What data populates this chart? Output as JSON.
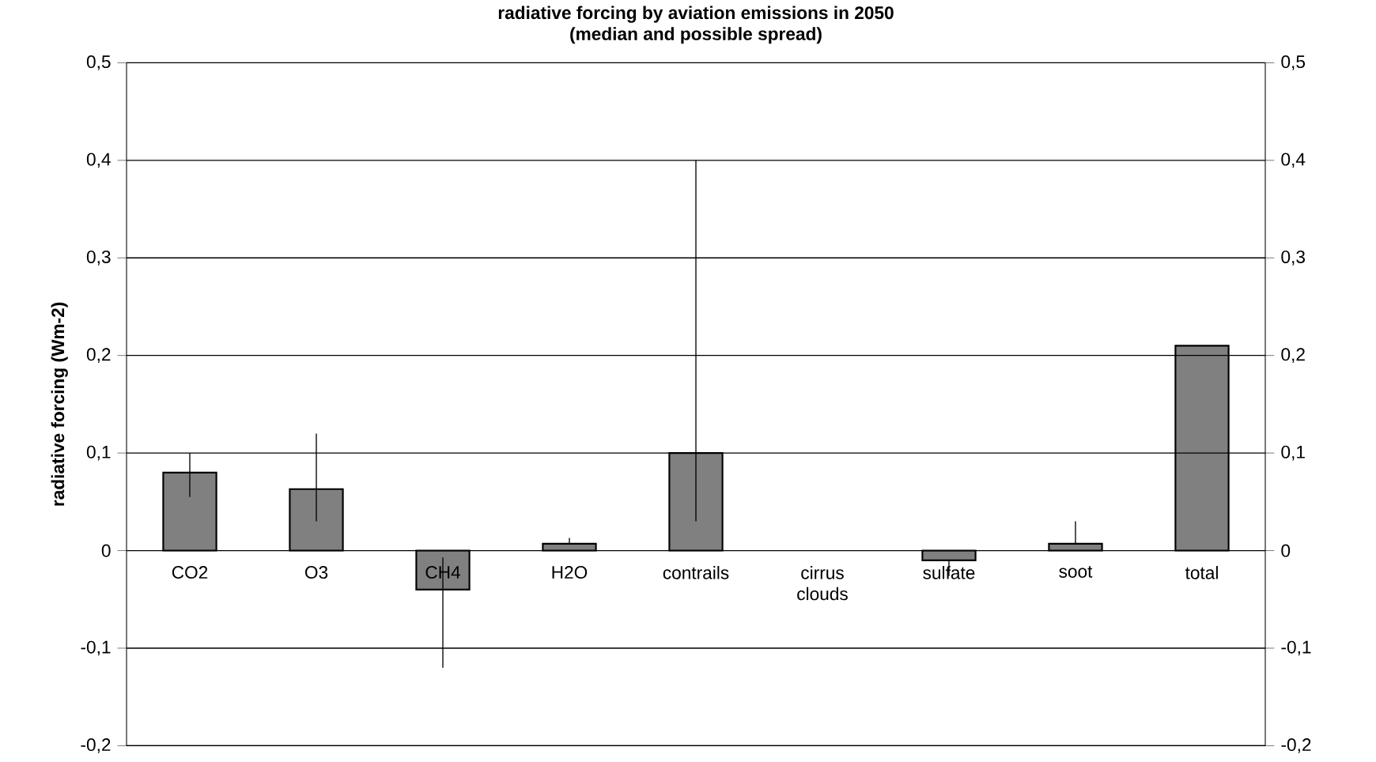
{
  "chart_data": {
    "type": "bar",
    "title": "radiative forcing by aviation emissions in 2050",
    "subtitle": "(median and possible spread)",
    "ylabel": "radiative forcing (Wm-2)",
    "categories": [
      "CO2",
      "O3",
      "CH4",
      "H2O",
      "contrails",
      "cirrus clouds",
      "sulfate",
      "soot",
      "total"
    ],
    "values": [
      0.08,
      0.063,
      -0.04,
      0.007,
      0.1,
      null,
      -0.01,
      0.007,
      0.21
    ],
    "errors": [
      [
        0.055,
        0.1
      ],
      [
        0.03,
        0.12
      ],
      [
        -0.12,
        -0.007
      ],
      [
        0.007,
        0.013
      ],
      [
        0.03,
        0.4
      ],
      null,
      [
        -0.026,
        -0.01
      ],
      [
        0.007,
        0.03
      ],
      null
    ],
    "color": "#808080",
    "ylim": [
      -0.2,
      0.5
    ],
    "yticks": [
      {
        "value": -0.2,
        "label": "-0,2"
      },
      {
        "value": -0.1,
        "label": "-0,1"
      },
      {
        "value": 0,
        "label": "0"
      },
      {
        "value": 0.1,
        "label": "0,1"
      },
      {
        "value": 0.2,
        "label": "0,2"
      },
      {
        "value": 0.3,
        "label": "0,3"
      },
      {
        "value": 0.4,
        "label": "0,4"
      },
      {
        "value": 0.5,
        "label": "0,5"
      }
    ],
    "y2lim": [
      -0.2,
      0.5
    ],
    "y2ticks": [
      {
        "value": -0.2,
        "label": "-0,2"
      },
      {
        "value": -0.1,
        "label": "-0,1"
      },
      {
        "value": 0,
        "label": "0"
      },
      {
        "value": 0.1,
        "label": "0,1"
      },
      {
        "value": 0.2,
        "label": "0,2"
      },
      {
        "value": 0.3,
        "label": "0,3"
      },
      {
        "value": 0.4,
        "label": "0,4"
      },
      {
        "value": 0.5,
        "label": "0,5"
      }
    ],
    "grid": "y"
  }
}
